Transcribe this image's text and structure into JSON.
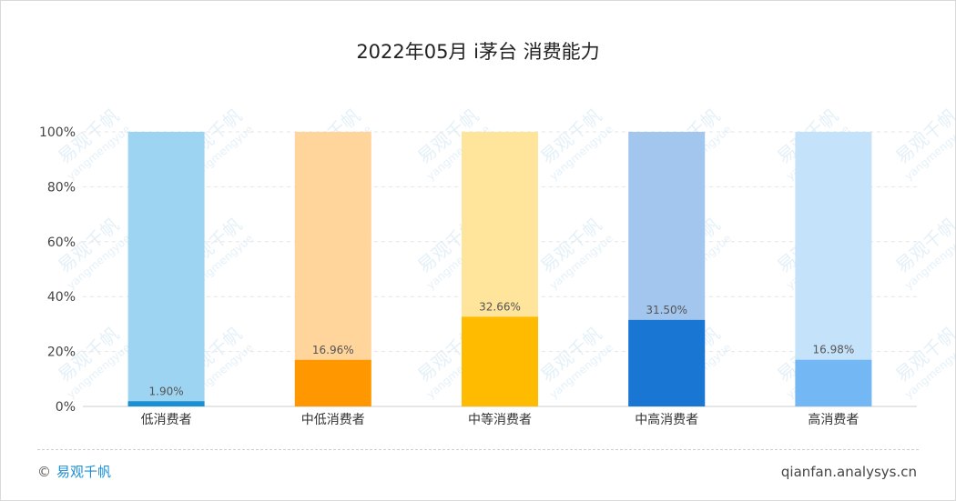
{
  "chart_data": {
    "type": "bar",
    "title": "2022年05月 i茅台 消费能力",
    "categories": [
      "低消费者",
      "中低消费者",
      "中等消费者",
      "中高消费者",
      "高消费者"
    ],
    "values": [
      1.9,
      16.96,
      32.66,
      31.5,
      16.98
    ],
    "value_labels": [
      "1.90%",
      "16.96%",
      "32.66%",
      "31.50%",
      "16.98%"
    ],
    "background_value": 100,
    "ylim": [
      0,
      100
    ],
    "yticks": [
      "0%",
      "20%",
      "40%",
      "60%",
      "80%",
      "100%"
    ],
    "ytick_values": [
      0,
      20,
      40,
      60,
      80,
      100
    ],
    "grid": true,
    "colors": {
      "fg": [
        "#1a8fd3",
        "#ff9800",
        "#ffbb00",
        "#1976d2",
        "#73b8f5"
      ],
      "bg": [
        "#9dd4f2",
        "#ffd59b",
        "#ffe59c",
        "#a3c6ee",
        "#c5e2fb"
      ]
    }
  },
  "footer": {
    "copyright_symbol": "©",
    "brand": "易观千帆",
    "source": "qianfan.analysys.cn"
  },
  "watermark": {
    "text": "易观千帆",
    "sub": "yangmengyue"
  }
}
